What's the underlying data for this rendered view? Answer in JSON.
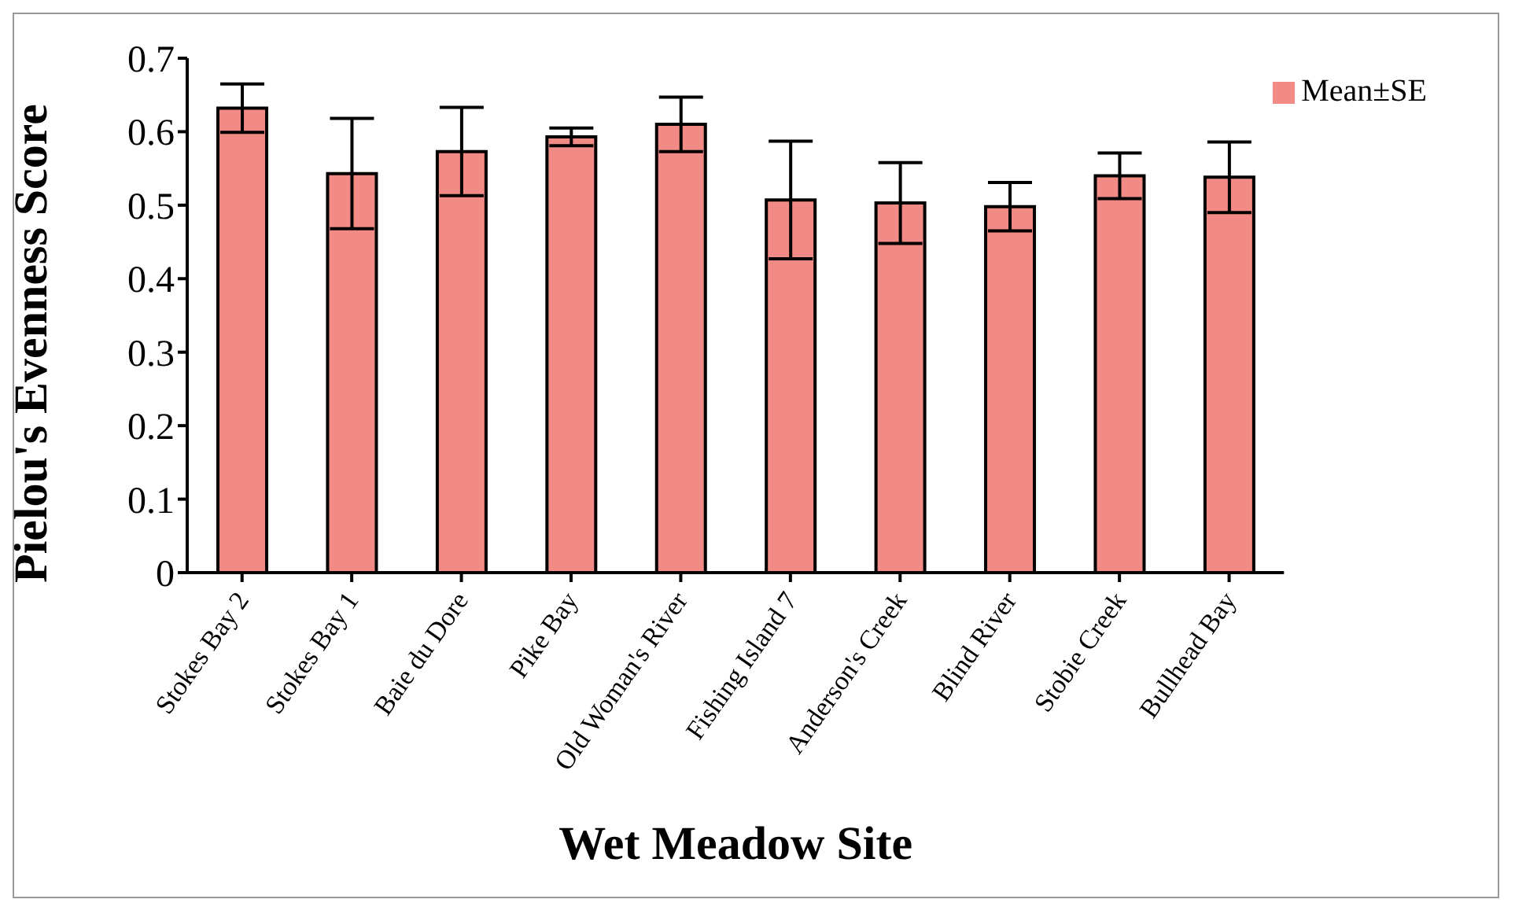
{
  "chart_data": {
    "type": "bar",
    "xlabel": "Wet Meadow Site",
    "ylabel": "Pielou's Evenness Score",
    "categories": [
      "Stokes Bay 2",
      "Stokes Bay 1",
      "Baie du Dore",
      "Pike Bay",
      "Old Woman's River",
      "Fishing Island 7",
      "Anderson's Creek",
      "Blind River",
      "Stobie Creek",
      "Bullhead Bay"
    ],
    "series": [
      {
        "name": "Mean±SE",
        "color": "#f28a85",
        "values": [
          0.632,
          0.543,
          0.573,
          0.593,
          0.61,
          0.507,
          0.503,
          0.498,
          0.54,
          0.538
        ],
        "errors": [
          0.033,
          0.075,
          0.06,
          0.012,
          0.037,
          0.08,
          0.055,
          0.033,
          0.031,
          0.048
        ]
      }
    ],
    "ylim": [
      0,
      0.7
    ],
    "yticks": [
      0,
      0.1,
      0.2,
      0.3,
      0.4,
      0.5,
      0.6,
      0.7
    ],
    "grid": false,
    "legend": "top right"
  }
}
